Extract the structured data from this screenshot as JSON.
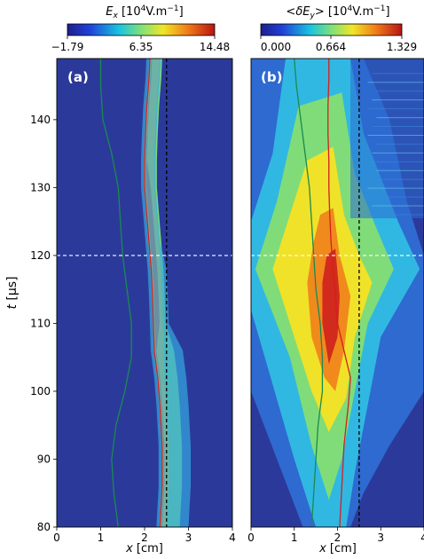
{
  "chart_data": [
    {
      "type": "heatmap",
      "panel_label": "(a)",
      "colorbar": {
        "label_html": [
          "E",
          "x",
          " [10",
          "4",
          "V.m",
          "−1",
          "]"
        ],
        "ticks": [
          "−1.79",
          "6.35",
          "14.48"
        ],
        "range": [
          -1.79,
          14.48
        ],
        "colormap": "jet"
      },
      "xlabel": "x [cm]",
      "ylabel": "t [μs]",
      "xlim": [
        0,
        4
      ],
      "ylim": [
        80,
        149
      ],
      "xticks": [
        0,
        1,
        2,
        3,
        4
      ],
      "yticks": [
        80,
        90,
        100,
        110,
        120,
        130,
        140
      ],
      "dashed_lines": [
        {
          "orientation": "vertical",
          "value": 2.5,
          "color": "#000000"
        },
        {
          "orientation": "horizontal",
          "value": 120,
          "color": "#ffffff"
        }
      ],
      "front_curve": {
        "t": [
          80,
          86,
          92,
          98,
          102,
          106,
          110,
          114,
          118,
          122,
          126,
          130,
          134,
          138,
          142,
          146,
          149
        ],
        "x": [
          2.35,
          2.4,
          2.4,
          2.35,
          2.3,
          2.22,
          2.2,
          2.18,
          2.15,
          2.1,
          2.05,
          2.0,
          2.0,
          2.02,
          2.05,
          2.1,
          2.12
        ],
        "color": "#d22020"
      },
      "ion_curve": {
        "t": [
          80,
          85,
          90,
          95,
          100,
          105,
          110,
          115,
          120,
          125,
          130,
          135,
          140,
          145,
          149
        ],
        "x": [
          1.4,
          1.3,
          1.25,
          1.35,
          1.55,
          1.7,
          1.7,
          1.6,
          1.5,
          1.45,
          1.4,
          1.25,
          1.05,
          1.0,
          1.0
        ],
        "color": "#1a8a50"
      }
    },
    {
      "type": "heatmap",
      "panel_label": "(b)",
      "colorbar": {
        "label_html": [
          "<δE",
          "y",
          "> [10",
          "4",
          "V.m",
          "−1",
          "]"
        ],
        "ticks": [
          "0.000",
          "0.664",
          "1.329"
        ],
        "range": [
          0,
          1.329
        ],
        "colormap": "jet"
      },
      "xlabel": "x [cm]",
      "xlim": [
        0,
        4
      ],
      "ylim": [
        80,
        149
      ],
      "xticks": [
        0,
        1,
        2,
        3,
        4
      ],
      "dashed_lines": [
        {
          "orientation": "vertical",
          "value": 2.5,
          "color": "#000000"
        },
        {
          "orientation": "horizontal",
          "value": 120,
          "color": "#ffffff"
        }
      ],
      "front_curve": {
        "t": [
          80,
          86,
          92,
          98,
          102,
          106,
          110,
          114,
          118,
          122,
          126,
          130,
          134,
          138,
          142,
          146,
          149
        ],
        "x": [
          2.05,
          2.1,
          2.15,
          2.25,
          2.3,
          2.15,
          2.0,
          1.95,
          1.9,
          1.85,
          1.82,
          1.8,
          1.8,
          1.78,
          1.78,
          1.8,
          1.8
        ],
        "color": "#d22020"
      },
      "ion_curve": {
        "t": [
          80,
          85,
          90,
          95,
          100,
          105,
          110,
          115,
          120,
          125,
          130,
          135,
          140,
          145,
          149
        ],
        "x": [
          1.4,
          1.45,
          1.5,
          1.55,
          1.65,
          1.65,
          1.6,
          1.5,
          1.45,
          1.4,
          1.35,
          1.25,
          1.15,
          1.05,
          1.0
        ],
        "color": "#1a8a50"
      }
    }
  ]
}
